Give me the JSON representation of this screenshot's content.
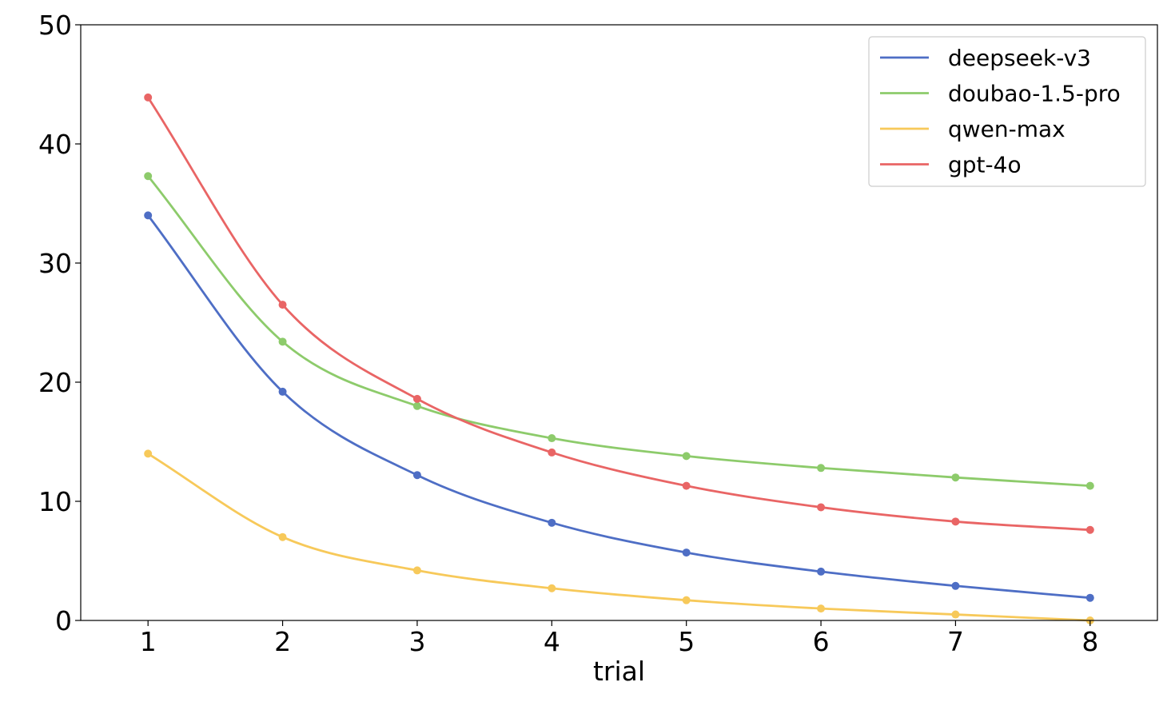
{
  "chart_data": {
    "type": "line",
    "title": "",
    "xlabel": "trial",
    "ylabel": "",
    "x": [
      1,
      2,
      3,
      4,
      5,
      6,
      7,
      8
    ],
    "xlim": [
      0.5,
      8.5
    ],
    "ylim": [
      0,
      50
    ],
    "xticks": [
      "1",
      "2",
      "3",
      "4",
      "5",
      "6",
      "7",
      "8"
    ],
    "yticks": [
      "0",
      "10",
      "20",
      "30",
      "40",
      "50"
    ],
    "grid": false,
    "legend_position": "top-right",
    "series": [
      {
        "name": "deepseek-v3",
        "color": "#4e6ec5",
        "values": [
          34.0,
          19.2,
          12.2,
          8.2,
          5.7,
          4.1,
          2.9,
          1.9
        ]
      },
      {
        "name": "doubao-1.5-pro",
        "color": "#8dcb6b",
        "values": [
          37.3,
          23.4,
          18.0,
          15.3,
          13.8,
          12.8,
          12.0,
          11.3
        ]
      },
      {
        "name": "qwen-max",
        "color": "#f7c95a",
        "values": [
          14.0,
          7.0,
          4.2,
          2.7,
          1.7,
          1.0,
          0.5,
          0.0
        ]
      },
      {
        "name": "gpt-4o",
        "color": "#e96565",
        "values": [
          43.9,
          26.5,
          18.6,
          14.1,
          11.3,
          9.5,
          8.3,
          7.6
        ]
      }
    ]
  }
}
